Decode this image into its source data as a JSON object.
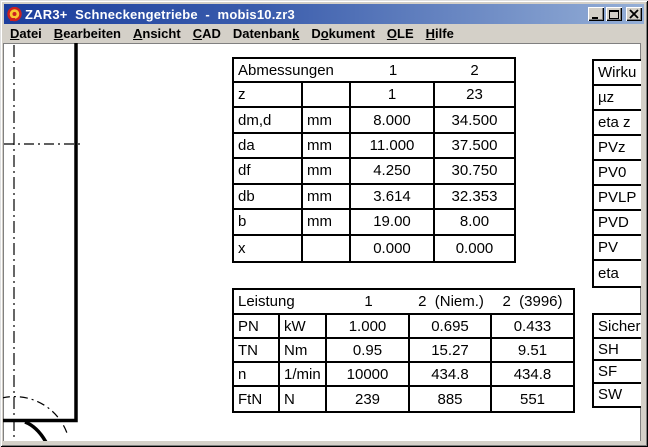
{
  "window": {
    "title": "ZAR3+  Schneckengetriebe  -  mobis10.zr3"
  },
  "menu": [
    {
      "label": "Datei",
      "mnemonic": 0
    },
    {
      "label": "Bearbeiten",
      "mnemonic": 0
    },
    {
      "label": "Ansicht",
      "mnemonic": 0
    },
    {
      "label": "CAD",
      "mnemonic": 0
    },
    {
      "label": "Datenbank",
      "mnemonic": 8
    },
    {
      "label": "Dokument",
      "mnemonic": 1
    },
    {
      "label": "OLE",
      "mnemonic": 0
    },
    {
      "label": "Hilfe",
      "mnemonic": 0
    }
  ],
  "tables": {
    "abmessungen": {
      "title": "Abmessungen",
      "col_headers": [
        "1",
        "2"
      ],
      "rows": [
        {
          "label": "z",
          "unit": "",
          "values": [
            "1",
            "23"
          ]
        },
        {
          "label": "dm,d",
          "unit": "mm",
          "values": [
            "8.000",
            "34.500"
          ]
        },
        {
          "label": "da",
          "unit": "mm",
          "values": [
            "11.000",
            "37.500"
          ]
        },
        {
          "label": "df",
          "unit": "mm",
          "values": [
            "4.250",
            "30.750"
          ]
        },
        {
          "label": "db",
          "unit": "mm",
          "values": [
            "3.614",
            "32.353"
          ]
        },
        {
          "label": "b",
          "unit": "mm",
          "values": [
            "19.00",
            "8.00"
          ]
        },
        {
          "label": "x",
          "unit": "",
          "values": [
            "0.000",
            "0.000"
          ]
        }
      ]
    },
    "leistung": {
      "title": "Leistung",
      "col_headers": [
        "1",
        "2  (Niem.)",
        "2  (3996)"
      ],
      "rows": [
        {
          "label": "PN",
          "unit": "kW",
          "values": [
            "1.000",
            "0.695",
            "0.433"
          ]
        },
        {
          "label": "TN",
          "unit": "Nm",
          "values": [
            "0.95",
            "15.27",
            "9.51"
          ]
        },
        {
          "label": "n",
          "unit": "1/min",
          "values": [
            "10000",
            "434.8",
            "434.8"
          ]
        },
        {
          "label": "FtN",
          "unit": "N",
          "values": [
            "239",
            "885",
            "551"
          ]
        }
      ]
    },
    "wirkungsgrade": {
      "title": "Wirku",
      "rows": [
        "µz",
        "eta z",
        "PVz",
        "PV0",
        "PVLP",
        "PVD",
        "PV",
        "eta"
      ]
    },
    "sicherheiten": {
      "title": "Sicher",
      "rows": [
        "SH",
        "SF",
        "SW"
      ]
    }
  },
  "colors": {
    "titlebar_from": "#1b3e9d",
    "titlebar_to": "#95afd7",
    "frame": "#D4D0C8",
    "client_bg": "#FFFFFF",
    "table_border": "#000000",
    "title_text": "#FFFFFF",
    "icon_red": "#CC2020",
    "icon_yellow": "#F8C830"
  }
}
